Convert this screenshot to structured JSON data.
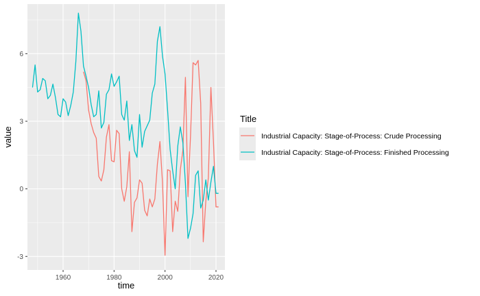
{
  "chart_data": {
    "type": "line",
    "xlabel": "time",
    "ylabel": "value",
    "xlim": [
      1946,
      2023.5
    ],
    "ylim": [
      -3.6,
      8.2
    ],
    "x_ticks": [
      1960,
      1980,
      2000,
      2020
    ],
    "y_ticks": [
      -3,
      0,
      3,
      6
    ],
    "x_minor": [
      1950,
      1970,
      1990,
      2010
    ],
    "y_minor": [
      -1.5,
      1.5,
      4.5,
      7.5
    ],
    "grid": true,
    "legend": {
      "title": "Title",
      "position": "right"
    },
    "series": [
      {
        "name": "Industrial Capacity: Stage-of-Process: Crude Processing",
        "color": "#F8766D",
        "x": [
          1968,
          1969,
          1970,
          1971,
          1972,
          1973,
          1974,
          1975,
          1976,
          1977,
          1978,
          1979,
          1980,
          1981,
          1982,
          1983,
          1984,
          1985,
          1986,
          1987,
          1988,
          1989,
          1990,
          1991,
          1992,
          1993,
          1994,
          1995,
          1996,
          1997,
          1998,
          1999,
          2000,
          2001,
          2002,
          2003,
          2004,
          2005,
          2006,
          2007,
          2008,
          2009,
          2010,
          2011,
          2012,
          2013,
          2014,
          2015,
          2016,
          2017,
          2018,
          2019,
          2020,
          2021
        ],
        "y": [
          5.2,
          4.8,
          3.5,
          2.9,
          2.5,
          2.25,
          0.55,
          0.35,
          0.85,
          2.3,
          2.85,
          1.25,
          1.2,
          2.6,
          2.45,
          0.0,
          -0.55,
          0.1,
          1.65,
          -1.9,
          -0.6,
          -0.4,
          0.4,
          0.25,
          -0.95,
          -1.2,
          -0.45,
          -0.8,
          -0.45,
          1.1,
          2.1,
          0.3,
          -2.95,
          0.85,
          0.8,
          -1.9,
          -0.55,
          -1.0,
          0.85,
          1.7,
          4.95,
          -0.35,
          2.35,
          5.6,
          5.5,
          5.7,
          3.8,
          -2.35,
          -0.55,
          0.5,
          4.5,
          2.1,
          -0.8,
          -0.8
        ]
      },
      {
        "name": "Industrial Capacity: Stage-of-Process: Finished Processing",
        "color": "#00BFC4",
        "x": [
          1948,
          1949,
          1950,
          1951,
          1952,
          1953,
          1954,
          1955,
          1956,
          1957,
          1958,
          1959,
          1960,
          1961,
          1962,
          1963,
          1964,
          1965,
          1966,
          1967,
          1968,
          1969,
          1970,
          1971,
          1972,
          1973,
          1974,
          1975,
          1976,
          1977,
          1978,
          1979,
          1980,
          1981,
          1982,
          1983,
          1984,
          1985,
          1986,
          1987,
          1988,
          1989,
          1990,
          1991,
          1992,
          1993,
          1994,
          1995,
          1996,
          1997,
          1998,
          1999,
          2000,
          2001,
          2002,
          2003,
          2004,
          2005,
          2006,
          2007,
          2008,
          2009,
          2010,
          2011,
          2012,
          2013,
          2014,
          2015,
          2016,
          2017,
          2018,
          2019,
          2020,
          2021
        ],
        "y": [
          4.5,
          5.5,
          4.3,
          4.4,
          4.9,
          4.8,
          4.0,
          4.15,
          4.65,
          4.05,
          3.3,
          3.2,
          4.0,
          3.85,
          3.25,
          3.7,
          4.3,
          5.65,
          7.8,
          7.0,
          5.45,
          5.0,
          4.5,
          3.75,
          3.2,
          3.3,
          4.35,
          2.7,
          2.95,
          4.2,
          4.4,
          5.1,
          4.55,
          4.75,
          5.0,
          3.3,
          3.05,
          3.9,
          2.15,
          2.85,
          1.7,
          1.4,
          3.3,
          1.85,
          2.55,
          2.8,
          3.05,
          4.25,
          4.65,
          6.55,
          7.2,
          5.9,
          5.1,
          3.5,
          1.75,
          0.8,
          0.0,
          1.9,
          2.75,
          2.05,
          0.25,
          -2.2,
          -1.75,
          -1.1,
          0.6,
          0.8,
          -0.85,
          -0.5,
          0.4,
          -0.5,
          0.3,
          1.0,
          -0.2,
          -0.2
        ]
      }
    ]
  }
}
